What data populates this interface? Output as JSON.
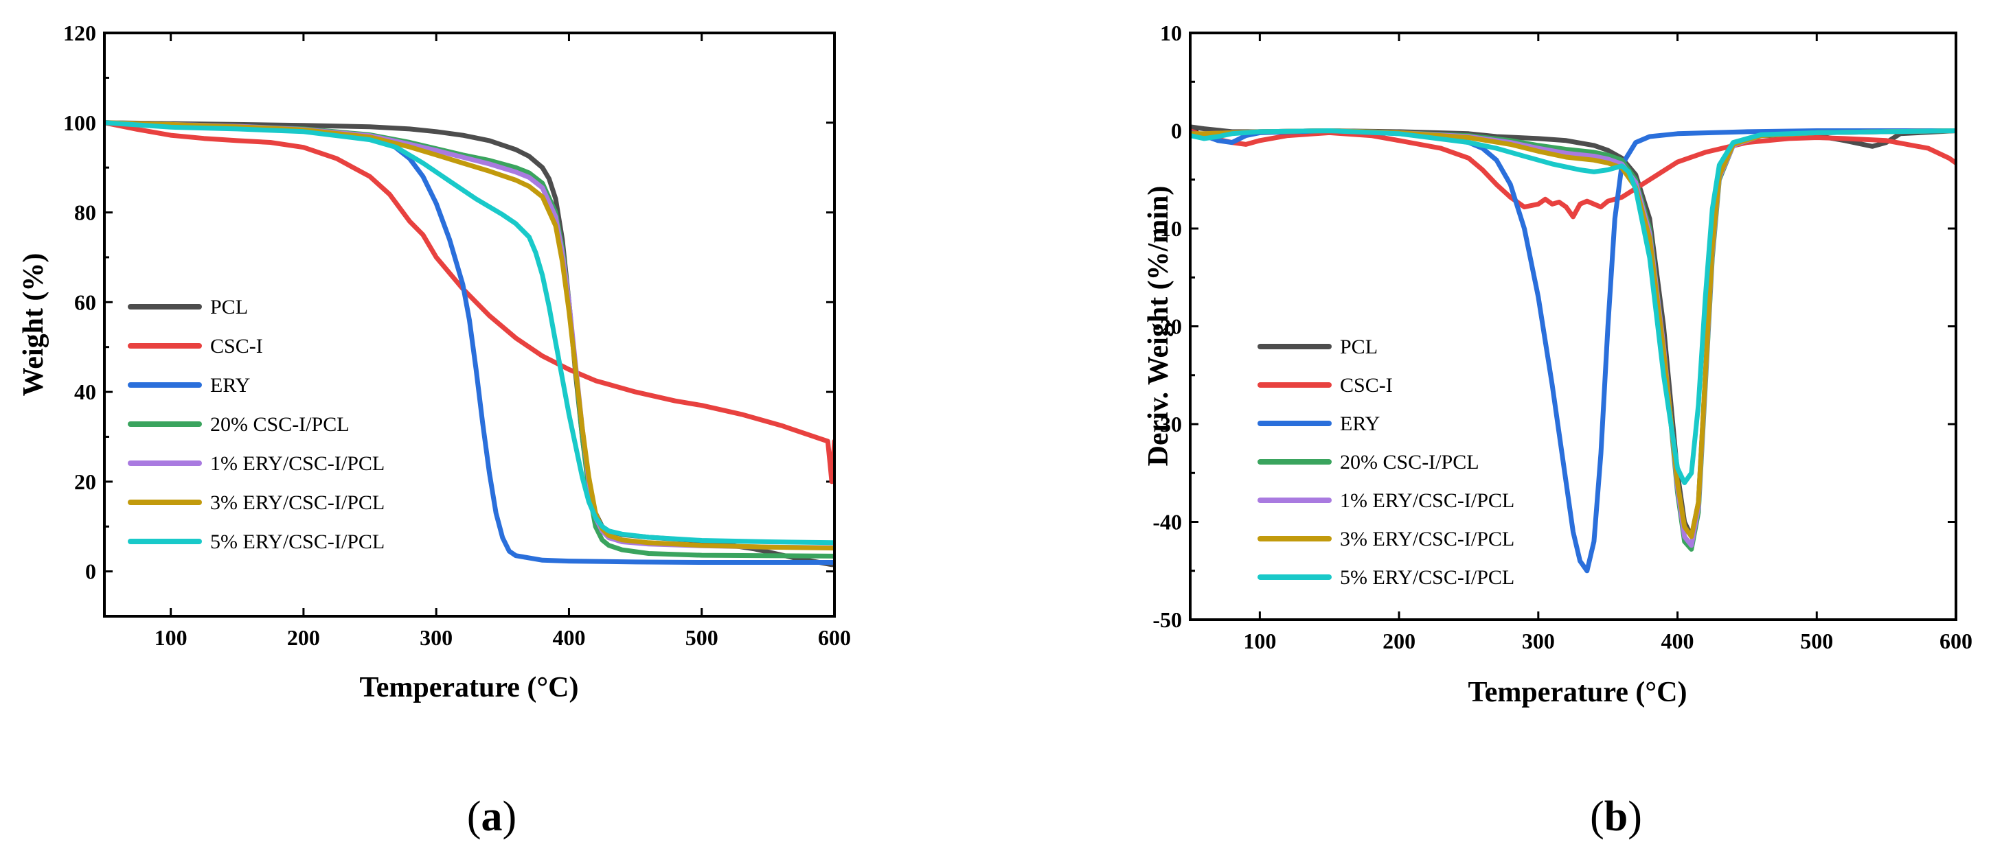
{
  "colors": {
    "PCL": "#4d4d4d",
    "CSC-I": "#e8413f",
    "ERY": "#2a6fdb",
    "20% CSC-I/PCL": "#3aa45e",
    "1% ERY/CSC-I/PCL": "#a97ae0",
    "3% ERY/CSC-I/PCL": "#c29a0c",
    "5% ERY/CSC-I/PCL": "#19c9c9"
  },
  "chart_data": [
    {
      "id": "a",
      "type": "line",
      "panel_label": "a",
      "title": "",
      "xlabel": "Temperature (°C)",
      "ylabel": "Weight (%)",
      "xlim": [
        50,
        600
      ],
      "ylim": [
        -10,
        120
      ],
      "xticks": [
        100,
        200,
        300,
        400,
        500,
        600
      ],
      "yticks": [
        0,
        20,
        40,
        60,
        80,
        100,
        120
      ],
      "legend_position": "left-middle",
      "series": [
        {
          "name": "PCL",
          "x": [
            50,
            100,
            150,
            200,
            250,
            280,
            300,
            320,
            340,
            360,
            370,
            380,
            385,
            390,
            395,
            400,
            405,
            410,
            415,
            420,
            425,
            430,
            440,
            460,
            500,
            540,
            570,
            598,
            600
          ],
          "y": [
            100,
            99.8,
            99.6,
            99.4,
            99.1,
            98.6,
            98.0,
            97.2,
            96.0,
            94.0,
            92.5,
            90.0,
            87.5,
            83.0,
            74.0,
            60.0,
            44.0,
            30.0,
            19.0,
            13.0,
            10.0,
            9.0,
            8.2,
            7.6,
            6.8,
            5.0,
            3.0,
            1.5,
            1.5
          ]
        },
        {
          "name": "CSC-I",
          "x": [
            50,
            75,
            100,
            125,
            150,
            175,
            200,
            225,
            250,
            265,
            280,
            290,
            300,
            320,
            340,
            360,
            380,
            400,
            420,
            450,
            480,
            500,
            530,
            560,
            580,
            595,
            597,
            598,
            600
          ],
          "y": [
            100,
            98.5,
            97.2,
            96.5,
            96.0,
            95.6,
            94.5,
            92.0,
            88.0,
            84.0,
            78.0,
            75.0,
            70.0,
            63.0,
            57.0,
            52.0,
            48.0,
            45.0,
            42.5,
            40.0,
            38.0,
            37.0,
            35.0,
            32.5,
            30.5,
            29.0,
            23.0,
            20.0,
            29.0
          ]
        },
        {
          "name": "ERY",
          "x": [
            50,
            100,
            150,
            200,
            230,
            250,
            265,
            280,
            290,
            300,
            310,
            320,
            325,
            330,
            335,
            340,
            345,
            350,
            355,
            360,
            380,
            400,
            450,
            500,
            550,
            600
          ],
          "y": [
            100,
            99.5,
            99.0,
            98.5,
            97.8,
            96.8,
            95.5,
            92.0,
            88.0,
            82.0,
            74.0,
            64.0,
            56.0,
            45.0,
            33.0,
            22.0,
            13.0,
            7.5,
            4.5,
            3.5,
            2.5,
            2.3,
            2.1,
            2.0,
            2.0,
            2.0
          ]
        },
        {
          "name": "20% CSC-I/PCL",
          "x": [
            50,
            100,
            150,
            200,
            250,
            280,
            300,
            320,
            340,
            360,
            370,
            380,
            390,
            395,
            400,
            405,
            410,
            415,
            420,
            425,
            430,
            440,
            460,
            500,
            550,
            600
          ],
          "y": [
            100,
            99.6,
            99.2,
            98.6,
            97.3,
            95.6,
            94.2,
            92.8,
            91.6,
            90.0,
            88.8,
            86.5,
            80.0,
            72.0,
            60.0,
            45.0,
            30.0,
            18.0,
            10.0,
            7.0,
            5.8,
            4.8,
            4.0,
            3.6,
            3.5,
            3.4
          ]
        },
        {
          "name": "1% ERY/CSC-I/PCL",
          "x": [
            50,
            100,
            150,
            200,
            250,
            280,
            300,
            320,
            340,
            360,
            370,
            380,
            390,
            395,
            400,
            405,
            410,
            415,
            420,
            425,
            430,
            440,
            460,
            500,
            550,
            600
          ],
          "y": [
            100,
            99.6,
            99.2,
            98.5,
            97.1,
            95.2,
            93.8,
            92.3,
            90.8,
            89.0,
            87.8,
            85.5,
            79.0,
            71.0,
            60.0,
            46.0,
            32.0,
            20.0,
            12.0,
            9.0,
            7.5,
            6.6,
            6.1,
            5.7,
            5.4,
            5.3
          ]
        },
        {
          "name": "3% ERY/CSC-I/PCL",
          "x": [
            50,
            100,
            150,
            200,
            250,
            280,
            300,
            320,
            340,
            360,
            370,
            380,
            390,
            395,
            400,
            405,
            410,
            415,
            420,
            425,
            430,
            440,
            460,
            500,
            550,
            600
          ],
          "y": [
            100,
            99.6,
            99.1,
            98.4,
            96.8,
            94.6,
            92.8,
            91.0,
            89.2,
            87.2,
            85.8,
            83.5,
            77.0,
            69.0,
            58.0,
            45.0,
            32.0,
            21.0,
            13.0,
            9.5,
            8.0,
            7.0,
            6.4,
            5.8,
            5.4,
            5.2
          ]
        },
        {
          "name": "5% ERY/CSC-I/PCL",
          "x": [
            50,
            100,
            150,
            200,
            250,
            270,
            290,
            310,
            330,
            350,
            360,
            370,
            375,
            380,
            385,
            390,
            395,
            400,
            405,
            410,
            415,
            420,
            425,
            430,
            440,
            460,
            500,
            550,
            600
          ],
          "y": [
            100,
            99.0,
            98.6,
            98.0,
            96.2,
            94.5,
            91.0,
            87.0,
            83.0,
            79.5,
            77.5,
            74.5,
            71.0,
            66.0,
            59.0,
            51.0,
            43.0,
            35.0,
            28.0,
            21.0,
            15.5,
            12.0,
            10.0,
            9.0,
            8.3,
            7.6,
            6.9,
            6.6,
            6.4
          ]
        }
      ]
    },
    {
      "id": "b",
      "type": "line",
      "panel_label": "b",
      "title": "",
      "xlabel": "Temperature  (°C)",
      "ylabel": "Deriv. Weight (%/min)",
      "xlim": [
        50,
        600
      ],
      "ylim": [
        -50,
        10
      ],
      "xticks": [
        100,
        200,
        300,
        400,
        500,
        600
      ],
      "yticks": [
        -50,
        -40,
        -30,
        -20,
        -10,
        0,
        10
      ],
      "legend_position": "left-bottom",
      "series": [
        {
          "name": "PCL",
          "x": [
            50,
            60,
            80,
            100,
            150,
            200,
            250,
            270,
            300,
            320,
            340,
            350,
            360,
            370,
            380,
            390,
            400,
            405,
            410,
            415,
            420,
            425,
            430,
            440,
            460,
            500,
            520,
            540,
            550,
            560,
            600
          ],
          "y": [
            0.4,
            0.2,
            -0.1,
            -0.1,
            0,
            -0.1,
            -0.3,
            -0.6,
            -0.8,
            -1.0,
            -1.5,
            -2.0,
            -2.8,
            -4.5,
            -9.0,
            -20.0,
            -35.0,
            -40.0,
            -41.5,
            -38.0,
            -25.0,
            -12.0,
            -4.5,
            -1.5,
            -0.5,
            -0.5,
            -1.0,
            -1.6,
            -1.2,
            -0.3,
            0
          ]
        },
        {
          "name": "CSC-I",
          "x": [
            50,
            60,
            70,
            80,
            90,
            100,
            120,
            150,
            180,
            200,
            230,
            250,
            260,
            270,
            280,
            290,
            300,
            305,
            310,
            315,
            320,
            325,
            330,
            335,
            340,
            345,
            350,
            355,
            360,
            380,
            400,
            420,
            450,
            480,
            500,
            520,
            550,
            580,
            595,
            600
          ],
          "y": [
            0,
            -0.5,
            -0.9,
            -1.2,
            -1.4,
            -1.0,
            -0.5,
            -0.2,
            -0.5,
            -1.0,
            -1.8,
            -2.8,
            -4.0,
            -5.5,
            -6.8,
            -7.8,
            -7.5,
            -7.0,
            -7.5,
            -7.3,
            -7.8,
            -8.8,
            -7.5,
            -7.2,
            -7.5,
            -7.8,
            -7.2,
            -7.0,
            -6.8,
            -5.0,
            -3.2,
            -2.2,
            -1.2,
            -0.8,
            -0.7,
            -0.8,
            -1.0,
            -1.8,
            -2.8,
            -3.3
          ]
        },
        {
          "name": "ERY",
          "x": [
            50,
            60,
            70,
            80,
            90,
            100,
            150,
            200,
            230,
            250,
            260,
            270,
            280,
            290,
            300,
            310,
            320,
            325,
            330,
            335,
            340,
            345,
            350,
            355,
            360,
            370,
            380,
            400,
            450,
            500,
            550,
            600
          ],
          "y": [
            -0.2,
            -0.5,
            -1.0,
            -1.2,
            -0.5,
            -0.2,
            0,
            -0.3,
            -0.7,
            -1.2,
            -1.8,
            -3.0,
            -5.5,
            -10.0,
            -17.0,
            -26.0,
            -36.0,
            -41.0,
            -44.0,
            -45.0,
            -42.0,
            -33.0,
            -20.0,
            -9.0,
            -3.5,
            -1.2,
            -0.6,
            -0.3,
            -0.1,
            0,
            0,
            0
          ]
        },
        {
          "name": "20% CSC-I/PCL",
          "x": [
            50,
            60,
            80,
            100,
            150,
            200,
            250,
            280,
            300,
            320,
            340,
            350,
            360,
            370,
            380,
            390,
            400,
            405,
            410,
            415,
            420,
            425,
            430,
            440,
            460,
            500,
            550,
            600
          ],
          "y": [
            -0.5,
            -0.4,
            -0.2,
            -0.1,
            0,
            -0.2,
            -0.5,
            -1.0,
            -1.5,
            -1.9,
            -2.2,
            -2.5,
            -3.0,
            -5.0,
            -10.0,
            -22.0,
            -37.0,
            -42.0,
            -42.8,
            -39.0,
            -26.0,
            -13.0,
            -5.0,
            -1.5,
            -0.5,
            -0.2,
            -0.1,
            0
          ]
        },
        {
          "name": "1% ERY/CSC-I/PCL",
          "x": [
            50,
            60,
            80,
            100,
            150,
            200,
            250,
            280,
            300,
            320,
            340,
            350,
            360,
            370,
            380,
            390,
            400,
            405,
            410,
            415,
            420,
            425,
            430,
            440,
            460,
            500,
            550,
            600
          ],
          "y": [
            -0.4,
            -0.3,
            -0.2,
            -0.1,
            0,
            -0.2,
            -0.6,
            -1.2,
            -1.8,
            -2.3,
            -2.6,
            -2.9,
            -3.4,
            -5.3,
            -10.5,
            -22.0,
            -36.5,
            -41.5,
            -42.4,
            -38.5,
            -25.5,
            -12.5,
            -4.8,
            -1.5,
            -0.5,
            -0.2,
            -0.1,
            0
          ]
        },
        {
          "name": "3% ERY/CSC-I/PCL",
          "x": [
            50,
            60,
            80,
            100,
            150,
            200,
            250,
            280,
            300,
            320,
            340,
            350,
            360,
            370,
            380,
            390,
            400,
            405,
            410,
            415,
            420,
            425,
            430,
            440,
            460,
            500,
            550,
            600
          ],
          "y": [
            -0.3,
            -0.3,
            -0.2,
            -0.1,
            0,
            -0.2,
            -0.7,
            -1.4,
            -2.1,
            -2.7,
            -3.0,
            -3.3,
            -3.8,
            -5.8,
            -11.0,
            -22.5,
            -36.0,
            -40.5,
            -41.5,
            -38.0,
            -25.0,
            -12.0,
            -4.6,
            -1.4,
            -0.5,
            -0.2,
            -0.1,
            0
          ]
        },
        {
          "name": "5% ERY/CSC-I/PCL",
          "x": [
            50,
            60,
            70,
            80,
            100,
            150,
            200,
            250,
            270,
            290,
            310,
            330,
            340,
            350,
            360,
            365,
            370,
            380,
            390,
            400,
            405,
            410,
            415,
            420,
            425,
            430,
            440,
            460,
            500,
            550,
            600
          ],
          "y": [
            -0.5,
            -0.8,
            -0.6,
            -0.3,
            -0.1,
            0,
            -0.3,
            -1.2,
            -1.8,
            -2.6,
            -3.4,
            -4.0,
            -4.2,
            -4.0,
            -3.6,
            -4.2,
            -6.0,
            -13.0,
            -25.0,
            -34.5,
            -36.0,
            -35.0,
            -28.0,
            -17.0,
            -8.0,
            -3.5,
            -1.2,
            -0.4,
            -0.2,
            -0.1,
            0
          ]
        }
      ]
    }
  ]
}
